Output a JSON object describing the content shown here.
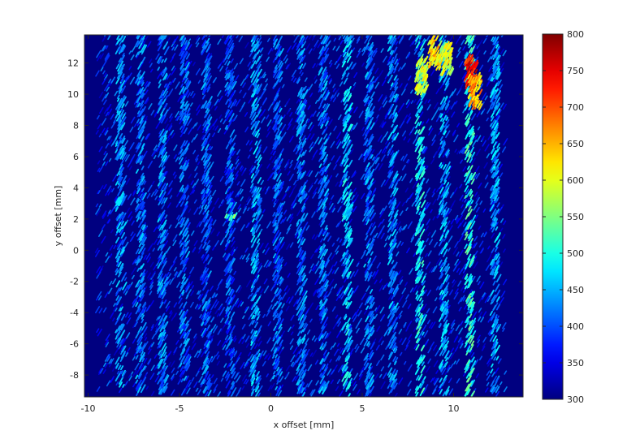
{
  "chart_data": {
    "type": "heatmap",
    "title": "",
    "xlabel": "x offset [mm]",
    "ylabel": "y offset [mm]",
    "xlim": [
      -10.2,
      13.8
    ],
    "ylim": [
      -9.4,
      13.8
    ],
    "xticks": [
      -10,
      -5,
      0,
      5,
      10
    ],
    "xtick_labels": [
      "-10",
      "-5",
      "0",
      "5",
      "10"
    ],
    "yticks": [
      -8,
      -6,
      -4,
      -2,
      0,
      2,
      4,
      6,
      8,
      10,
      12
    ],
    "ytick_labels": [
      "-8",
      "-6",
      "-4",
      "-2",
      "0",
      "2",
      "4",
      "6",
      "8",
      "10",
      "12"
    ],
    "colorbar": {
      "colormap": "jet",
      "min": 300,
      "max": 800,
      "ticks": [
        300,
        350,
        400,
        450,
        500,
        550,
        600,
        650,
        700,
        750,
        800
      ],
      "tick_labels": [
        "300",
        "350",
        "400",
        "450",
        "500",
        "550",
        "600",
        "650",
        "700",
        "750",
        "800"
      ]
    },
    "background_value": 300,
    "grid": false,
    "data_extent": {
      "x": [
        -9.6,
        12.8
      ],
      "y": [
        -9.4,
        13.8
      ]
    },
    "stripes": [
      {
        "x": -8.3,
        "y_from": -8.8,
        "y_to": 13.8,
        "level": 450
      },
      {
        "x": -7.2,
        "y_from": -9.4,
        "y_to": 13.8,
        "level": 440
      },
      {
        "x": -6.0,
        "y_from": -9.4,
        "y_to": 13.8,
        "level": 440
      },
      {
        "x": -4.8,
        "y_from": -9.4,
        "y_to": 13.8,
        "level": 430
      },
      {
        "x": -3.6,
        "y_from": -9.4,
        "y_to": 13.8,
        "level": 430
      },
      {
        "x": -2.3,
        "y_from": -9.4,
        "y_to": 13.8,
        "level": 420
      },
      {
        "x": -0.9,
        "y_from": -9.4,
        "y_to": 13.8,
        "level": 460
      },
      {
        "x": 0.3,
        "y_from": -9.4,
        "y_to": 13.8,
        "level": 430
      },
      {
        "x": 1.6,
        "y_from": -9.4,
        "y_to": 13.8,
        "level": 440
      },
      {
        "x": 2.8,
        "y_from": -9.4,
        "y_to": 13.8,
        "level": 440
      },
      {
        "x": 4.1,
        "y_from": -9.4,
        "y_to": 13.8,
        "level": 480
      },
      {
        "x": 5.3,
        "y_from": -9.4,
        "y_to": 13.8,
        "level": 440
      },
      {
        "x": 6.6,
        "y_from": -9.4,
        "y_to": 13.8,
        "level": 450
      },
      {
        "x": 8.1,
        "y_from": -9.4,
        "y_to": 13.8,
        "level": 500
      },
      {
        "x": 9.4,
        "y_from": -9.4,
        "y_to": 13.8,
        "level": 460
      },
      {
        "x": 10.8,
        "y_from": -9.4,
        "y_to": 13.8,
        "level": 520
      },
      {
        "x": 12.2,
        "y_from": -9.4,
        "y_to": 13.8,
        "level": 460
      }
    ],
    "hotspots": [
      {
        "x": 8.2,
        "y": 11.0,
        "value": 620
      },
      {
        "x": 8.9,
        "y": 12.6,
        "value": 660
      },
      {
        "x": 9.5,
        "y": 12.2,
        "value": 620
      },
      {
        "x": 10.9,
        "y": 11.2,
        "value": 760
      },
      {
        "x": 11.1,
        "y": 10.0,
        "value": 680
      },
      {
        "x": -2.3,
        "y": 2.0,
        "value": 560
      }
    ]
  }
}
